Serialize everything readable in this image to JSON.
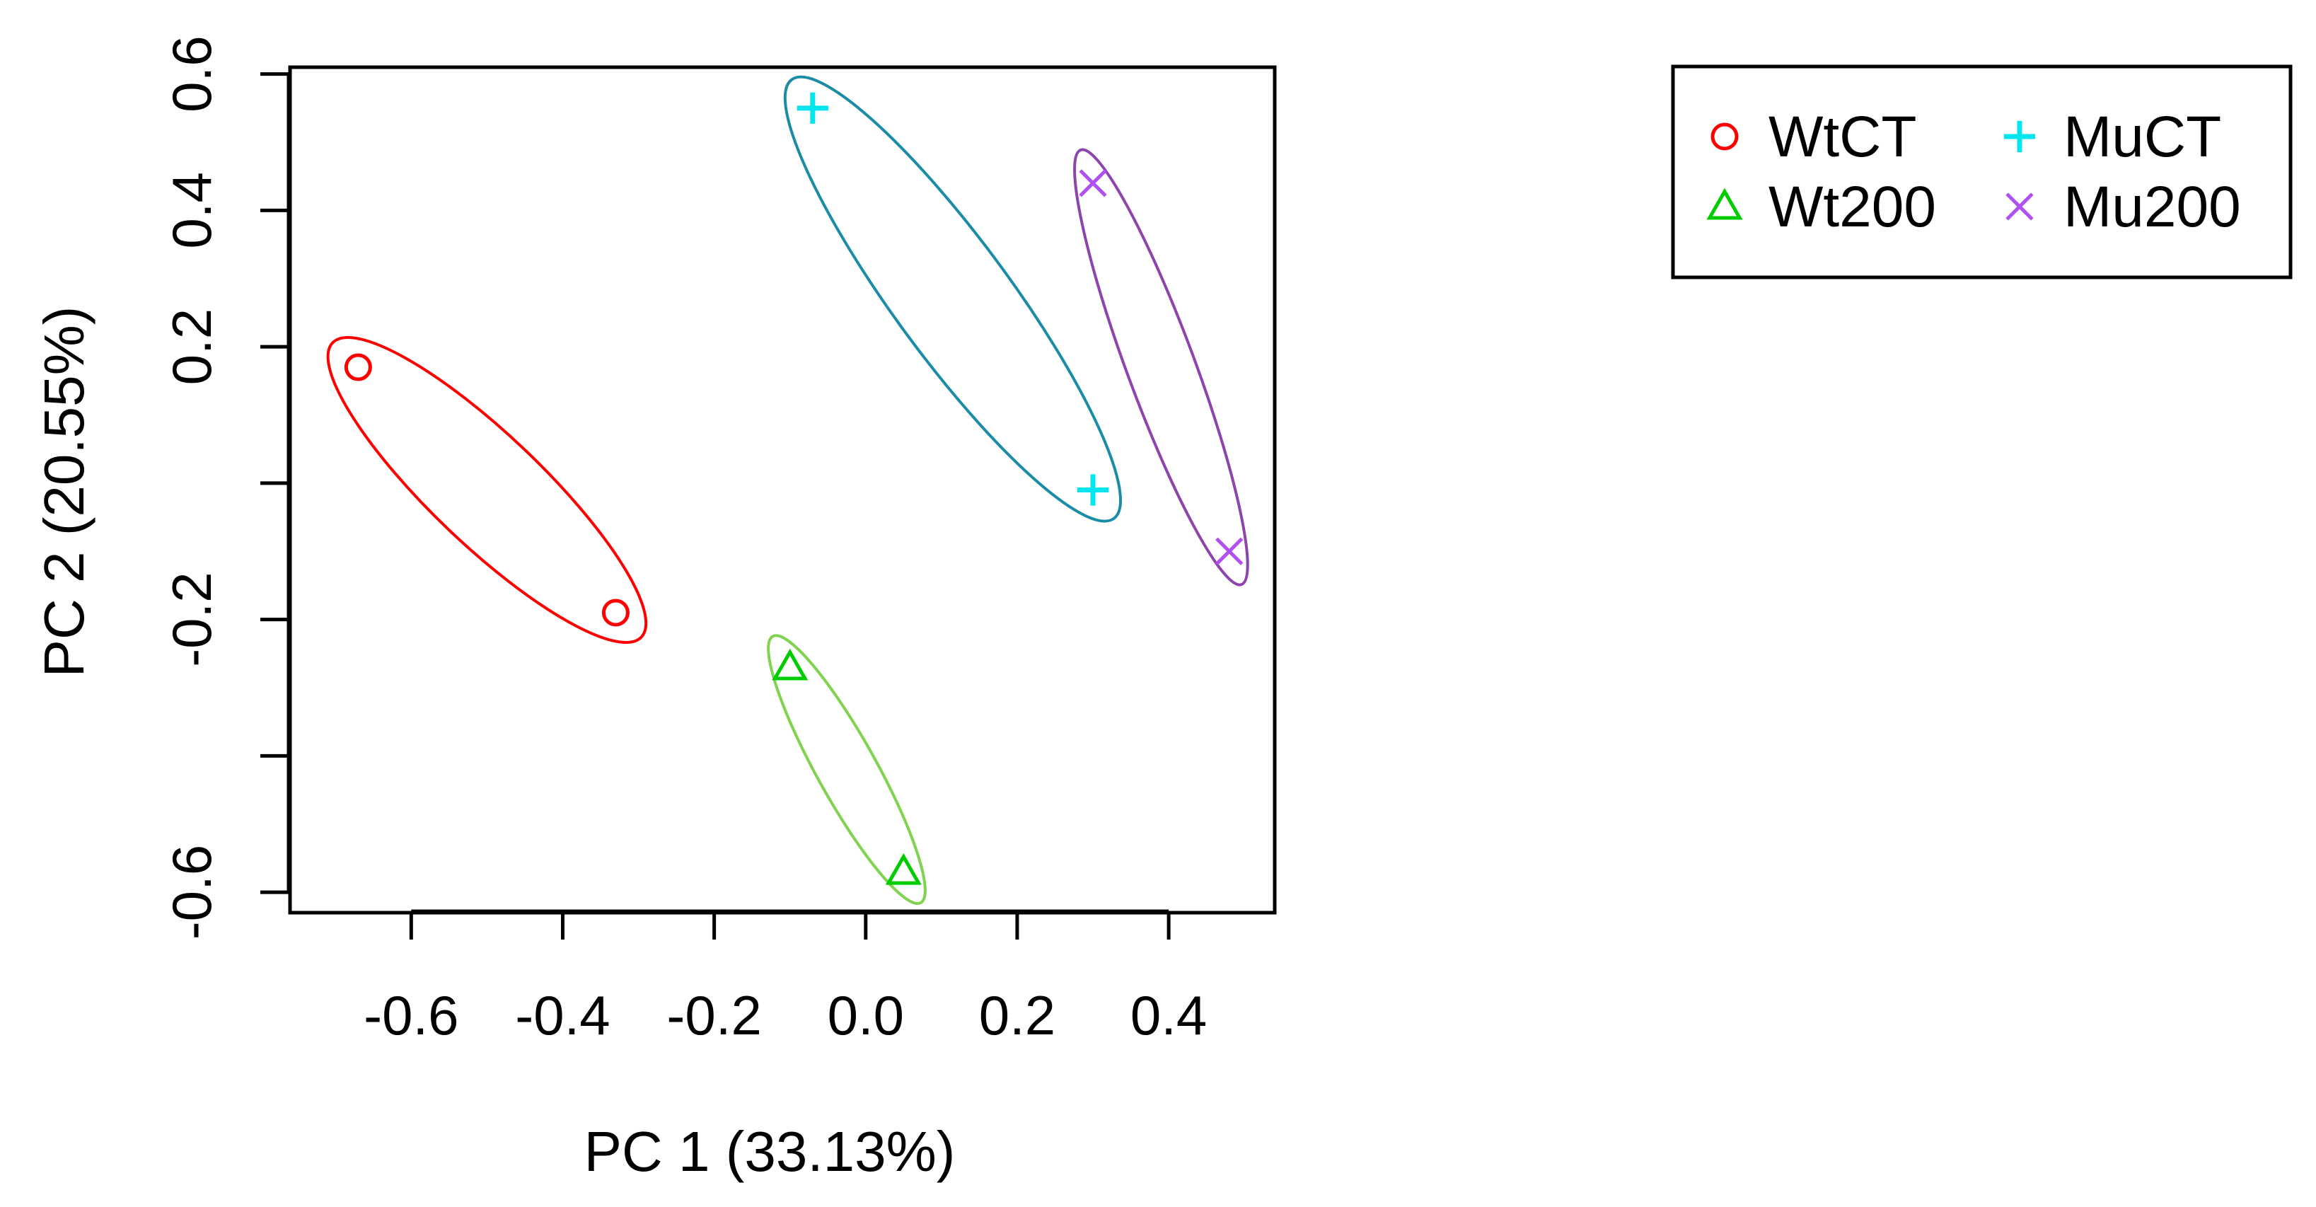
{
  "chart_data": {
    "type": "scatter",
    "title": "",
    "xlabel": "PC 1 (33.13%)",
    "ylabel": "PC 2 (20.55%)",
    "xlim": [
      -0.76,
      0.54
    ],
    "ylim": [
      -0.63,
      0.61
    ],
    "xticks": [
      -0.6,
      -0.4,
      -0.2,
      0.0,
      0.2,
      0.4
    ],
    "xtick_labels": [
      "-0.6",
      "-0.4",
      "-0.2",
      "0.0",
      "0.2",
      "0.4"
    ],
    "yticks": [
      -0.6,
      -0.4,
      -0.2,
      0.0,
      0.2,
      0.4,
      0.6
    ],
    "ytick_labels": [
      "-0.6",
      "",
      "-0.2",
      "",
      "0.2",
      "0.4",
      "0.6"
    ],
    "grid": false,
    "legend": "top-right, outside plot, two columns",
    "series": [
      {
        "name": "WtCT",
        "marker": "circle",
        "color": "#ff0000",
        "ellipse_color": "#ff0000",
        "points": [
          {
            "x": -0.67,
            "y": 0.17
          },
          {
            "x": -0.33,
            "y": -0.19
          }
        ]
      },
      {
        "name": "Wt200",
        "marker": "triangle",
        "color": "#00cc00",
        "ellipse_color": "#7fd34e",
        "points": [
          {
            "x": -0.1,
            "y": -0.27
          },
          {
            "x": 0.05,
            "y": -0.57
          }
        ]
      },
      {
        "name": "MuCT",
        "marker": "plus",
        "color": "#00e5ee",
        "ellipse_color": "#1b8ca6",
        "points": [
          {
            "x": -0.07,
            "y": 0.55
          },
          {
            "x": 0.3,
            "y": -0.01
          }
        ]
      },
      {
        "name": "Mu200",
        "marker": "cross",
        "color": "#b050f0",
        "ellipse_color": "#8e44ad",
        "points": [
          {
            "x": 0.3,
            "y": 0.44
          },
          {
            "x": 0.48,
            "y": -0.1
          }
        ]
      }
    ]
  }
}
